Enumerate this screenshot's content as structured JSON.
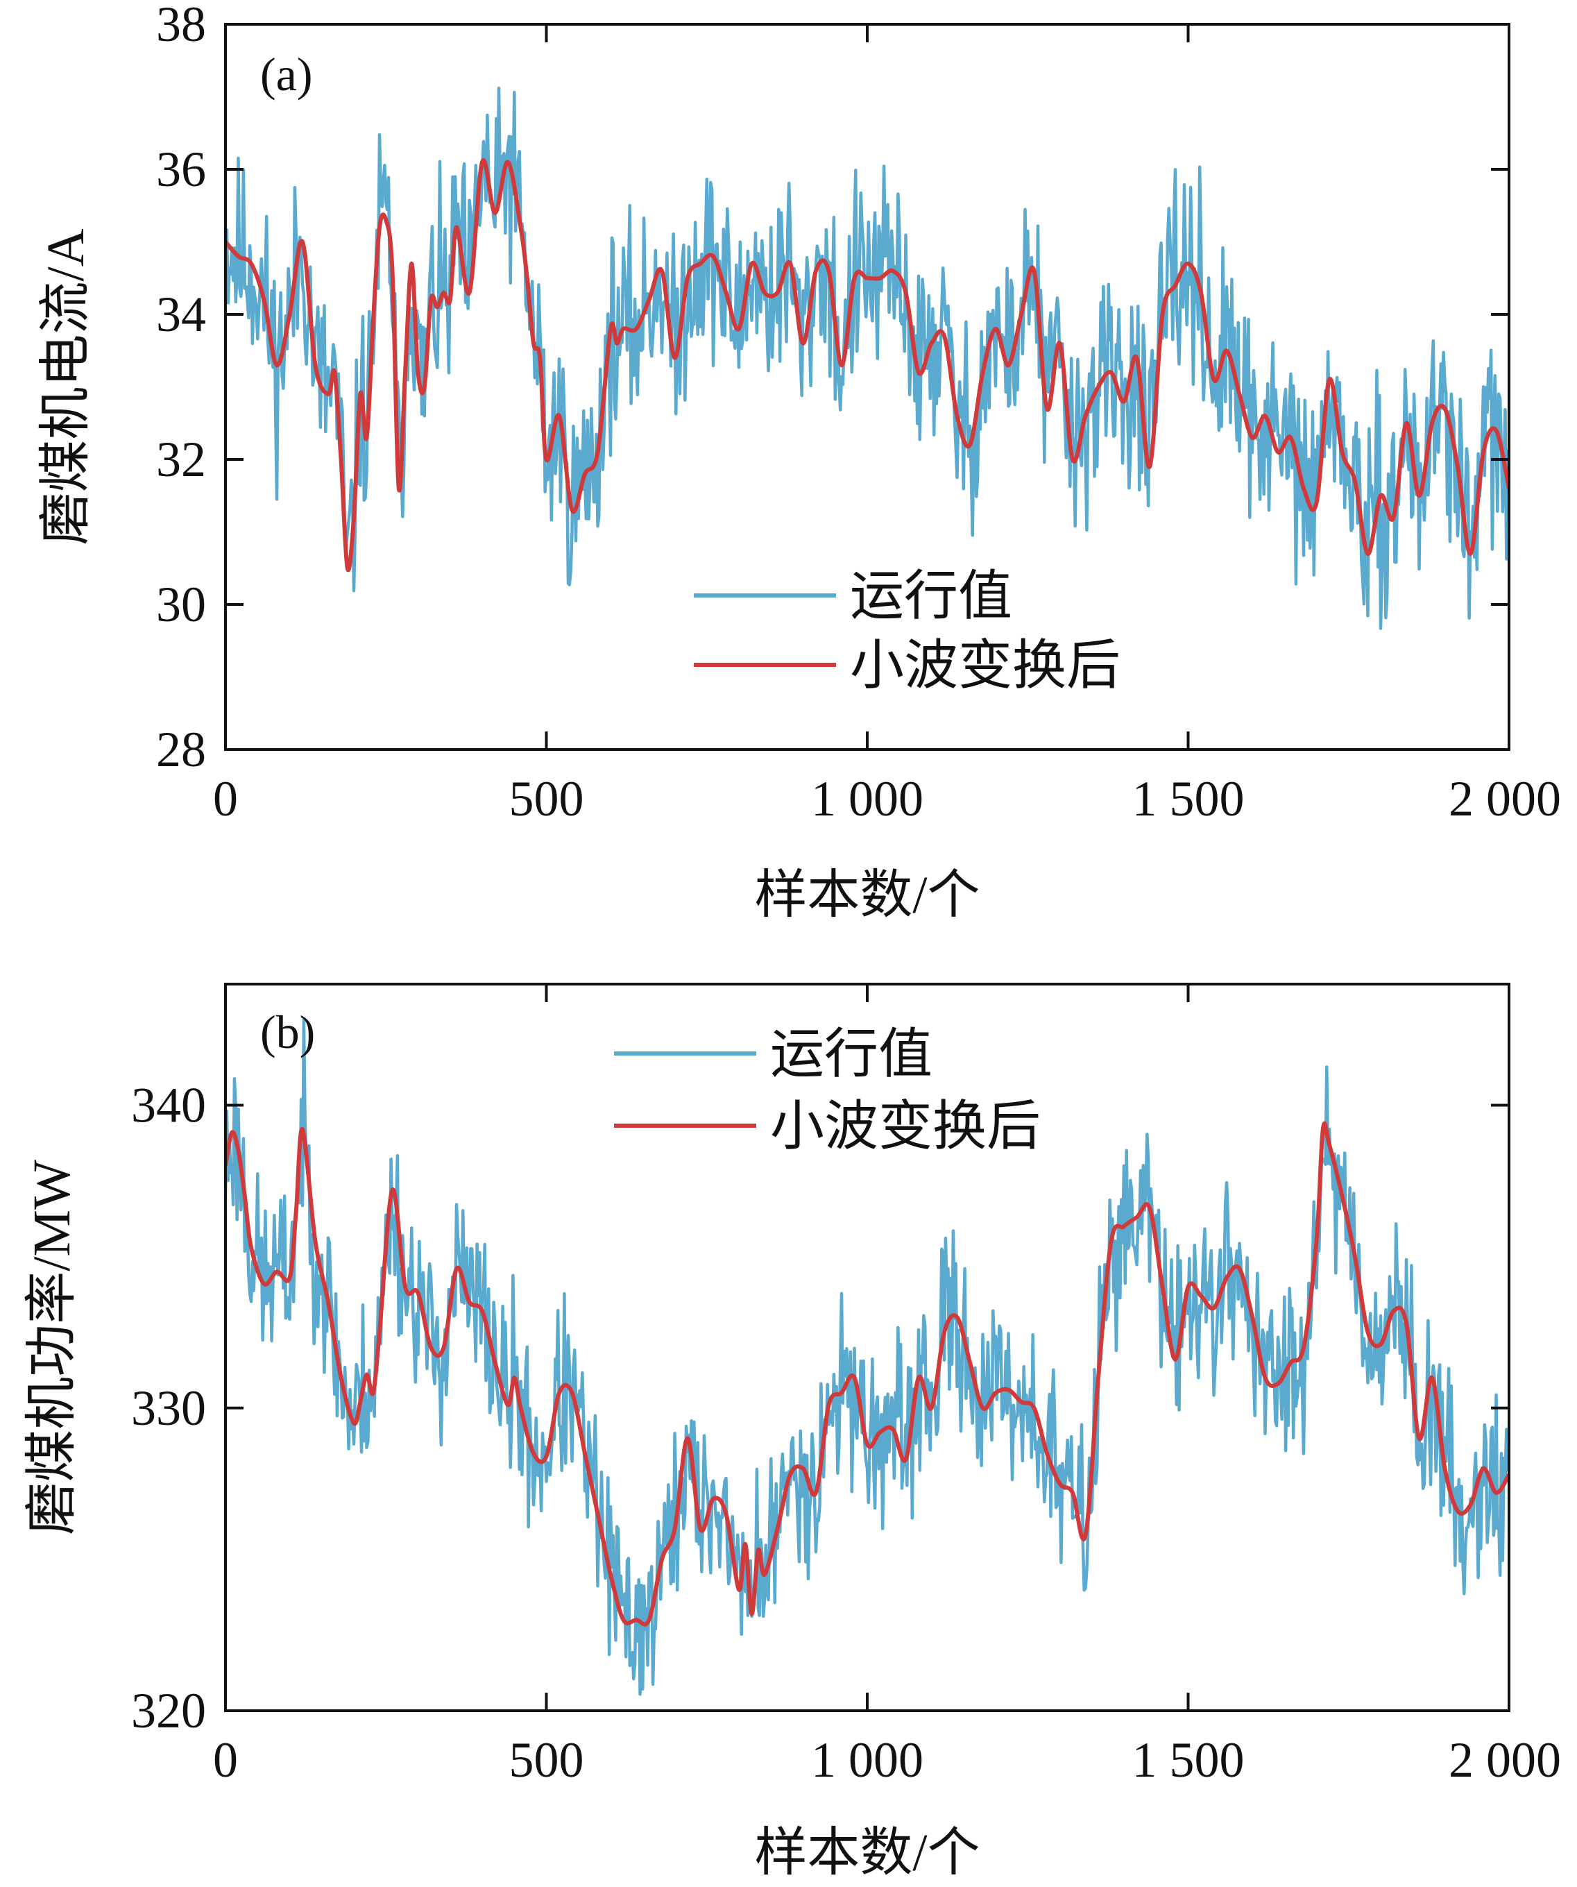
{
  "chart_data": [
    {
      "type": "line",
      "panel_label": "(a)",
      "xlabel": "样本数/个",
      "ylabel": "磨煤机电流/A",
      "xlim": [
        0,
        2000
      ],
      "ylim": [
        28,
        38
      ],
      "xticks": [
        0,
        500,
        1000,
        1500,
        2000
      ],
      "xtick_labels": [
        "0",
        "500",
        "1 000",
        "1 500",
        "2 000"
      ],
      "yticks": [
        28,
        30,
        32,
        34,
        36,
        38
      ],
      "ytick_labels": [
        "28",
        "30",
        "32",
        "34",
        "36",
        "38"
      ],
      "legend_position": "lower-center",
      "colors": {
        "raw": "#5aa9cf",
        "smooth": "#d03a3a"
      },
      "series": [
        {
          "name": "运行值",
          "kind": "raw",
          "noise": 0.75,
          "seed": 11
        },
        {
          "name": "小波变换后",
          "kind": "smooth",
          "x": [
            0,
            20,
            40,
            60,
            80,
            100,
            120,
            140,
            160,
            170,
            180,
            190,
            200,
            210,
            220,
            230,
            240,
            250,
            260,
            270,
            280,
            290,
            300,
            310,
            320,
            330,
            340,
            350,
            360,
            380,
            400,
            420,
            440,
            460,
            470,
            480,
            490,
            500,
            520,
            540,
            560,
            580,
            600,
            610,
            620,
            640,
            660,
            680,
            700,
            720,
            740,
            760,
            780,
            800,
            820,
            840,
            860,
            880,
            900,
            920,
            940,
            960,
            980,
            1000,
            1020,
            1040,
            1060,
            1080,
            1100,
            1120,
            1140,
            1160,
            1180,
            1200,
            1220,
            1240,
            1260,
            1280,
            1300,
            1320,
            1340,
            1360,
            1380,
            1400,
            1420,
            1440,
            1460,
            1480,
            1500,
            1520,
            1540,
            1560,
            1580,
            1600,
            1620,
            1640,
            1660,
            1680,
            1700,
            1720,
            1740,
            1760,
            1780,
            1800,
            1820,
            1840,
            1860,
            1880,
            1900,
            1920,
            1940,
            1960,
            1980,
            2000
          ],
          "values": [
            35.0,
            34.8,
            34.7,
            34.2,
            33.3,
            34.0,
            35.0,
            33.3,
            32.9,
            33.2,
            32.0,
            30.5,
            31.2,
            32.9,
            32.3,
            33.9,
            35.2,
            35.3,
            34.6,
            31.6,
            33.2,
            34.7,
            33.2,
            33.0,
            34.2,
            34.1,
            34.3,
            34.2,
            35.2,
            34.3,
            36.1,
            35.4,
            36.1,
            35.2,
            34.5,
            33.6,
            33.4,
            32.0,
            32.6,
            31.3,
            31.8,
            32.1,
            33.8,
            33.6,
            33.8,
            33.8,
            34.2,
            34.6,
            33.4,
            34.5,
            34.7,
            34.8,
            34.3,
            33.8,
            34.7,
            34.3,
            34.3,
            34.7,
            33.6,
            34.6,
            34.6,
            33.3,
            34.5,
            34.5,
            34.5,
            34.6,
            34.3,
            33.2,
            33.6,
            33.7,
            32.6,
            32.2,
            33.2,
            33.8,
            33.3,
            34.0,
            34.6,
            32.7,
            33.6,
            32.0,
            32.6,
            33.0,
            33.2,
            32.8,
            33.4,
            31.9,
            34.0,
            34.4,
            34.7,
            34.3,
            33.1,
            33.5,
            32.9,
            32.3,
            32.6,
            32.1,
            32.3,
            31.6,
            31.4,
            33.1,
            32.1,
            31.7,
            30.7,
            31.5,
            31.2,
            32.5,
            31.5,
            32.5,
            32.7,
            31.9,
            30.7,
            32.1,
            32.4,
            31.6
          ]
        }
      ]
    },
    {
      "type": "line",
      "panel_label": "(b)",
      "xlabel": "样本数/个",
      "ylabel": "磨煤机功率/MW",
      "xlim": [
        0,
        2000
      ],
      "ylim": [
        320,
        344
      ],
      "xticks": [
        0,
        500,
        1000,
        1500,
        2000
      ],
      "xtick_labels": [
        "0",
        "500",
        "1 000",
        "1 500",
        "2 000"
      ],
      "yticks": [
        320,
        330,
        340
      ],
      "ytick_labels": [
        "320",
        "330",
        "340"
      ],
      "legend_position": "top-center",
      "colors": {
        "raw": "#5aa9cf",
        "smooth": "#d03a3a"
      },
      "series": [
        {
          "name": "运行值",
          "kind": "raw",
          "noise": 1.6,
          "seed": 23
        },
        {
          "name": "小波变换后",
          "kind": "smooth",
          "x": [
            0,
            10,
            20,
            30,
            40,
            60,
            80,
            100,
            110,
            120,
            140,
            160,
            180,
            200,
            210,
            220,
            230,
            240,
            260,
            280,
            300,
            320,
            340,
            360,
            380,
            400,
            420,
            440,
            450,
            460,
            480,
            500,
            520,
            540,
            560,
            580,
            600,
            620,
            640,
            660,
            680,
            700,
            720,
            740,
            760,
            780,
            800,
            810,
            820,
            830,
            840,
            860,
            880,
            900,
            920,
            940,
            960,
            980,
            1000,
            1020,
            1040,
            1060,
            1080,
            1100,
            1120,
            1140,
            1160,
            1180,
            1200,
            1220,
            1240,
            1260,
            1280,
            1300,
            1320,
            1340,
            1360,
            1380,
            1400,
            1420,
            1440,
            1460,
            1480,
            1500,
            1520,
            1540,
            1560,
            1580,
            1600,
            1620,
            1640,
            1660,
            1680,
            1700,
            1710,
            1720,
            1740,
            1760,
            1780,
            1800,
            1820,
            1840,
            1860,
            1880,
            1900,
            1920,
            1940,
            1960,
            1980,
            2000
          ],
          "values": [
            338.0,
            339.1,
            338.5,
            337.0,
            335.3,
            334.1,
            334.5,
            334.3,
            336.5,
            339.2,
            335.5,
            333.5,
            331.0,
            329.5,
            330.2,
            331.1,
            330.5,
            332.5,
            337.2,
            334.0,
            333.8,
            332.0,
            332.0,
            334.6,
            333.5,
            333.2,
            331.5,
            330.1,
            331.0,
            330.0,
            328.5,
            328.4,
            330.5,
            330.5,
            328.5,
            326.5,
            324.5,
            323.0,
            323.0,
            323.0,
            325.0,
            326.0,
            329.0,
            326.0,
            327.0,
            326.5,
            324.0,
            325.5,
            323.2,
            325.3,
            324.5,
            326.0,
            327.8,
            328.0,
            327.2,
            330.1,
            330.5,
            331.0,
            328.8,
            329.2,
            329.3,
            328.3,
            331.0,
            330.0,
            332.5,
            333.0,
            331.5,
            330.0,
            330.5,
            330.6,
            330.2,
            330.0,
            328.5,
            327.5,
            327.2,
            325.8,
            331.0,
            335.5,
            336.0,
            336.3,
            336.6,
            334.0,
            331.6,
            334.0,
            333.7,
            333.3,
            334.3,
            334.6,
            333.0,
            331.0,
            330.8,
            331.5,
            332.0,
            335.5,
            339.2,
            338.7,
            337.0,
            335.0,
            332.5,
            332.1,
            333.2,
            332.8,
            329.0,
            331.0,
            328.0,
            326.6,
            326.8,
            328.0,
            327.2,
            327.8
          ]
        }
      ]
    }
  ]
}
